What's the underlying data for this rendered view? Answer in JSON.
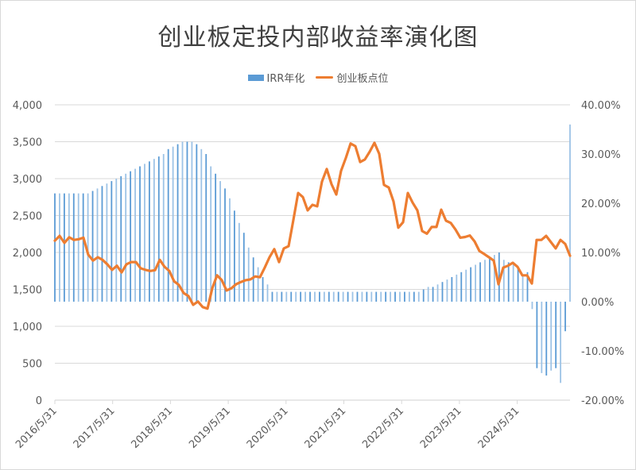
{
  "title": "创业板定投内部收益率演化图",
  "legend": [
    {
      "label": "IRR年化",
      "color": "#5b9bd5",
      "type": "bar"
    },
    {
      "label": "创业板点位",
      "color": "#ed7d31",
      "type": "line"
    }
  ],
  "axes": {
    "left_ticks": [
      "4,000",
      "3,500",
      "3,000",
      "2,500",
      "2,000",
      "1,500",
      "1,000",
      "500",
      "0"
    ],
    "right_ticks": [
      "40.00%",
      "30.00%",
      "20.00%",
      "10.00%",
      "0.00%",
      "-10.00%",
      "-20.00%"
    ],
    "x_ticks": [
      "2016/5/31",
      "2017/5/31",
      "2018/5/31",
      "2019/5/31",
      "2020/5/31",
      "2021/5/31",
      "2022/5/31",
      "2023/5/31",
      "2024/5/31"
    ]
  },
  "chart_data": {
    "type": "bar+line",
    "title": "创业板定投内部收益率演化图",
    "xlabel": "",
    "ylabel_left": "创业板点位",
    "ylabel_right": "IRR年化",
    "ylim_left": [
      0,
      4000
    ],
    "ylim_right": [
      -0.2,
      0.4
    ],
    "grid": true,
    "legend_position": "top",
    "x_start": "2016/5/31",
    "x_frequency": "monthly",
    "x_tick_labels": [
      "2016/5/31",
      "2017/5/31",
      "2018/5/31",
      "2019/5/31",
      "2020/5/31",
      "2021/5/31",
      "2022/5/31",
      "2023/5/31",
      "2024/5/31"
    ],
    "series": [
      {
        "name": "IRR年化",
        "type": "bar",
        "axis": "right",
        "color": "#5b9bd5",
        "values": [
          0.22,
          0.22,
          0.22,
          0.22,
          0.22,
          0.22,
          0.22,
          0.22,
          0.225,
          0.23,
          0.235,
          0.24,
          0.245,
          0.25,
          0.255,
          0.26,
          0.265,
          0.27,
          0.275,
          0.28,
          0.285,
          0.29,
          0.295,
          0.3,
          0.31,
          0.315,
          0.32,
          0.325,
          0.325,
          0.325,
          0.32,
          0.31,
          0.3,
          0.275,
          0.26,
          0.245,
          0.23,
          0.21,
          0.185,
          0.16,
          0.14,
          0.11,
          0.09,
          0.07,
          0.05,
          0.035,
          0.02,
          0.02,
          0.02,
          0.02,
          0.02,
          0.02,
          0.02,
          0.02,
          0.02,
          0.02,
          0.02,
          0.02,
          0.02,
          0.02,
          0.02,
          0.02,
          0.02,
          0.02,
          0.02,
          0.02,
          0.02,
          0.02,
          0.02,
          0.02,
          0.02,
          0.02,
          0.02,
          0.02,
          0.02,
          0.02,
          0.02,
          0.02,
          0.025,
          0.03,
          0.03,
          0.035,
          0.04,
          0.045,
          0.05,
          0.055,
          0.06,
          0.065,
          0.07,
          0.075,
          0.08,
          0.085,
          0.09,
          0.095,
          0.1,
          0.085,
          0.08,
          0.075,
          0.07,
          0.055,
          0.06,
          -0.015,
          -0.135,
          -0.145,
          -0.15,
          -0.14,
          -0.135,
          -0.165,
          -0.06,
          0.36
        ]
      },
      {
        "name": "创业板点位",
        "type": "line",
        "axis": "left",
        "color": "#ed7d31",
        "values": [
          2160,
          2225,
          2130,
          2205,
          2170,
          2180,
          2200,
          1970,
          1890,
          1935,
          1900,
          1840,
          1765,
          1820,
          1730,
          1840,
          1870,
          1870,
          1785,
          1765,
          1750,
          1760,
          1900,
          1805,
          1750,
          1610,
          1560,
          1450,
          1410,
          1290,
          1335,
          1260,
          1240,
          1515,
          1690,
          1625,
          1485,
          1515,
          1570,
          1600,
          1625,
          1635,
          1675,
          1665,
          1795,
          1935,
          2045,
          1870,
          2055,
          2085,
          2440,
          2805,
          2750,
          2570,
          2645,
          2625,
          2960,
          3130,
          2925,
          2785,
          3105,
          3280,
          3475,
          3440,
          3225,
          3260,
          3365,
          3485,
          3335,
          2915,
          2880,
          2690,
          2335,
          2410,
          2805,
          2675,
          2570,
          2290,
          2255,
          2345,
          2345,
          2580,
          2430,
          2400,
          2310,
          2200,
          2210,
          2230,
          2150,
          2020,
          1980,
          1935,
          1890,
          1570,
          1795,
          1820,
          1860,
          1805,
          1690,
          1690,
          1580,
          2170,
          2170,
          2225,
          2140,
          2055,
          2170,
          2115,
          1955
        ]
      }
    ]
  }
}
